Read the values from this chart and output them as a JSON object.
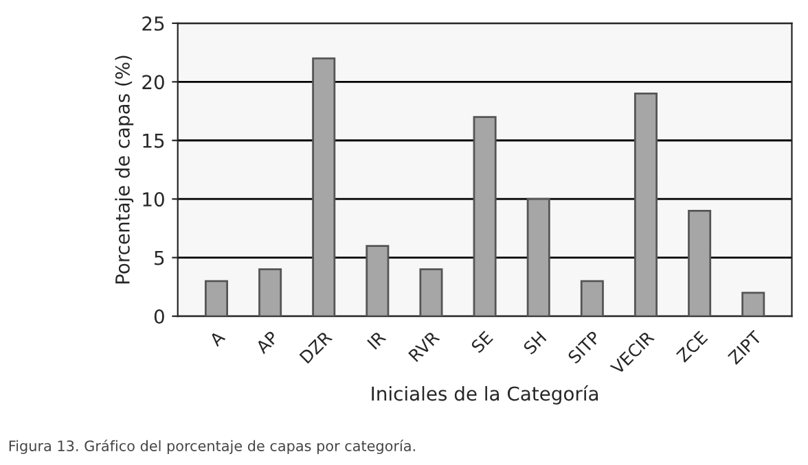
{
  "chart_data": {
    "type": "bar",
    "xlabel": "Iniciales de la Categoría",
    "ylabel": "Porcentaje de capas (%)",
    "categories": [
      "A",
      "AP",
      "DZR",
      "IR",
      "RVR",
      "SE",
      "SH",
      "SITP",
      "VECIR",
      "ZCE",
      "ZIPT"
    ],
    "values": [
      3,
      4,
      22,
      6,
      4,
      17,
      10,
      3,
      19,
      9,
      2
    ],
    "color": "#a6a6a6",
    "ylim": [
      0,
      25
    ],
    "yticks": [
      0,
      5,
      10,
      15,
      20,
      25
    ],
    "grid": "y",
    "annotations": [
      "Figura 13. Gráfico del porcentaje de capas por categoría."
    ]
  }
}
